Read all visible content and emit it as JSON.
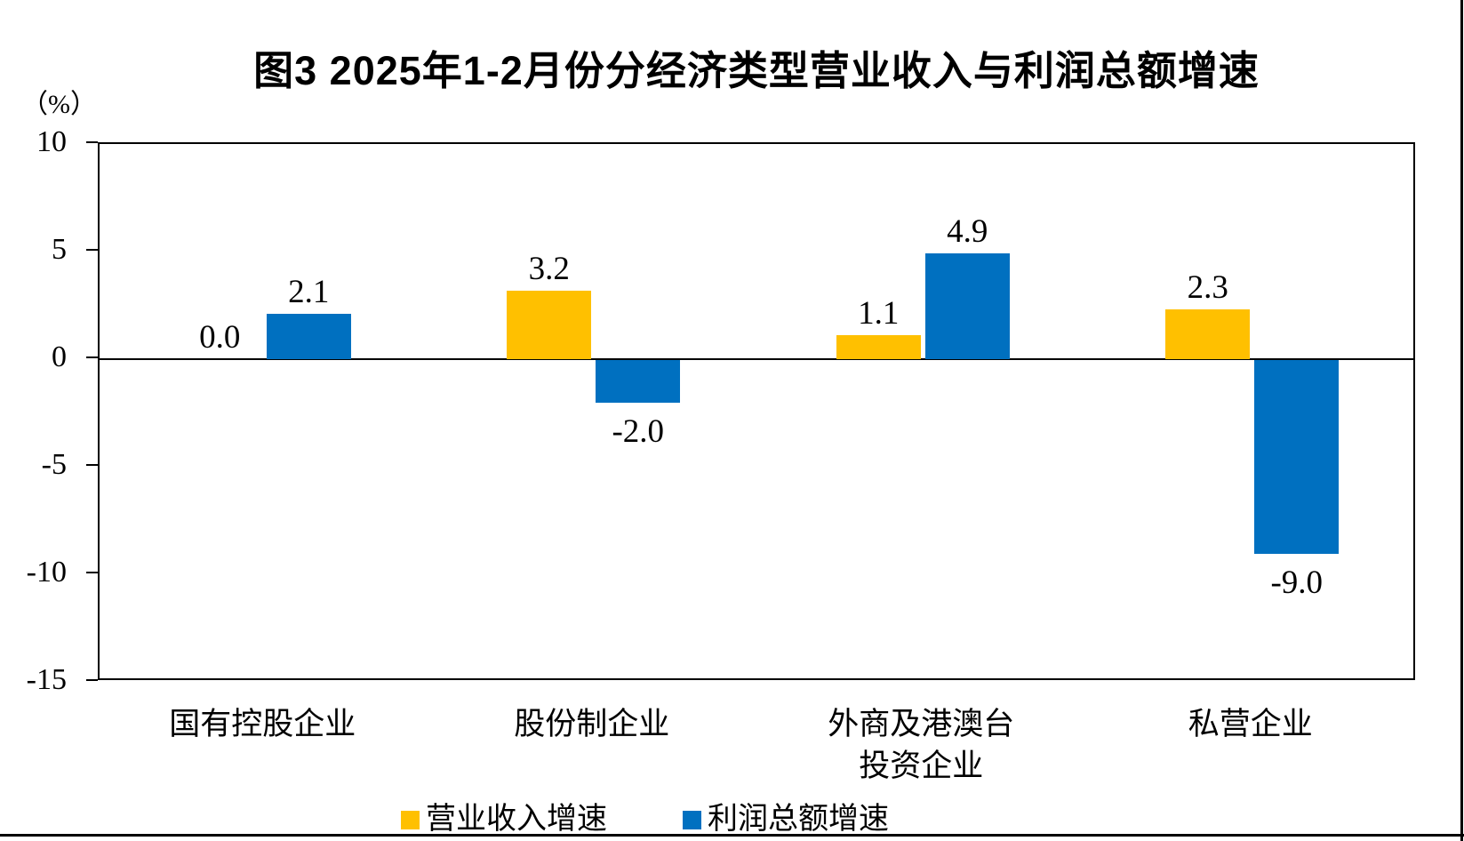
{
  "chart_data": {
    "type": "bar",
    "title": "图3 2025年1-2月份分经济类型营业收入与利润总额增速",
    "y_unit_label": "（%）",
    "categories": [
      "国有控股企业",
      "股份制企业",
      "外商及港澳台\n投资企业",
      "私营企业"
    ],
    "series": [
      {
        "name": "营业收入增速",
        "color": "#FFC000",
        "values": [
          0.0,
          3.2,
          1.1,
          2.3
        ],
        "labels": [
          "0.0",
          "3.2",
          "1.1",
          "2.3"
        ]
      },
      {
        "name": "利润总额增速",
        "color": "#0070C0",
        "values": [
          2.1,
          -2.0,
          4.9,
          -9.0
        ],
        "labels": [
          "2.1",
          "-2.0",
          "4.9",
          "-9.0"
        ]
      }
    ],
    "ylim": [
      -15,
      10
    ],
    "yticks": [
      10,
      5,
      0,
      -5,
      -10,
      -15
    ],
    "grid": false,
    "legend_position": "bottom",
    "axis_color": "#000000"
  }
}
